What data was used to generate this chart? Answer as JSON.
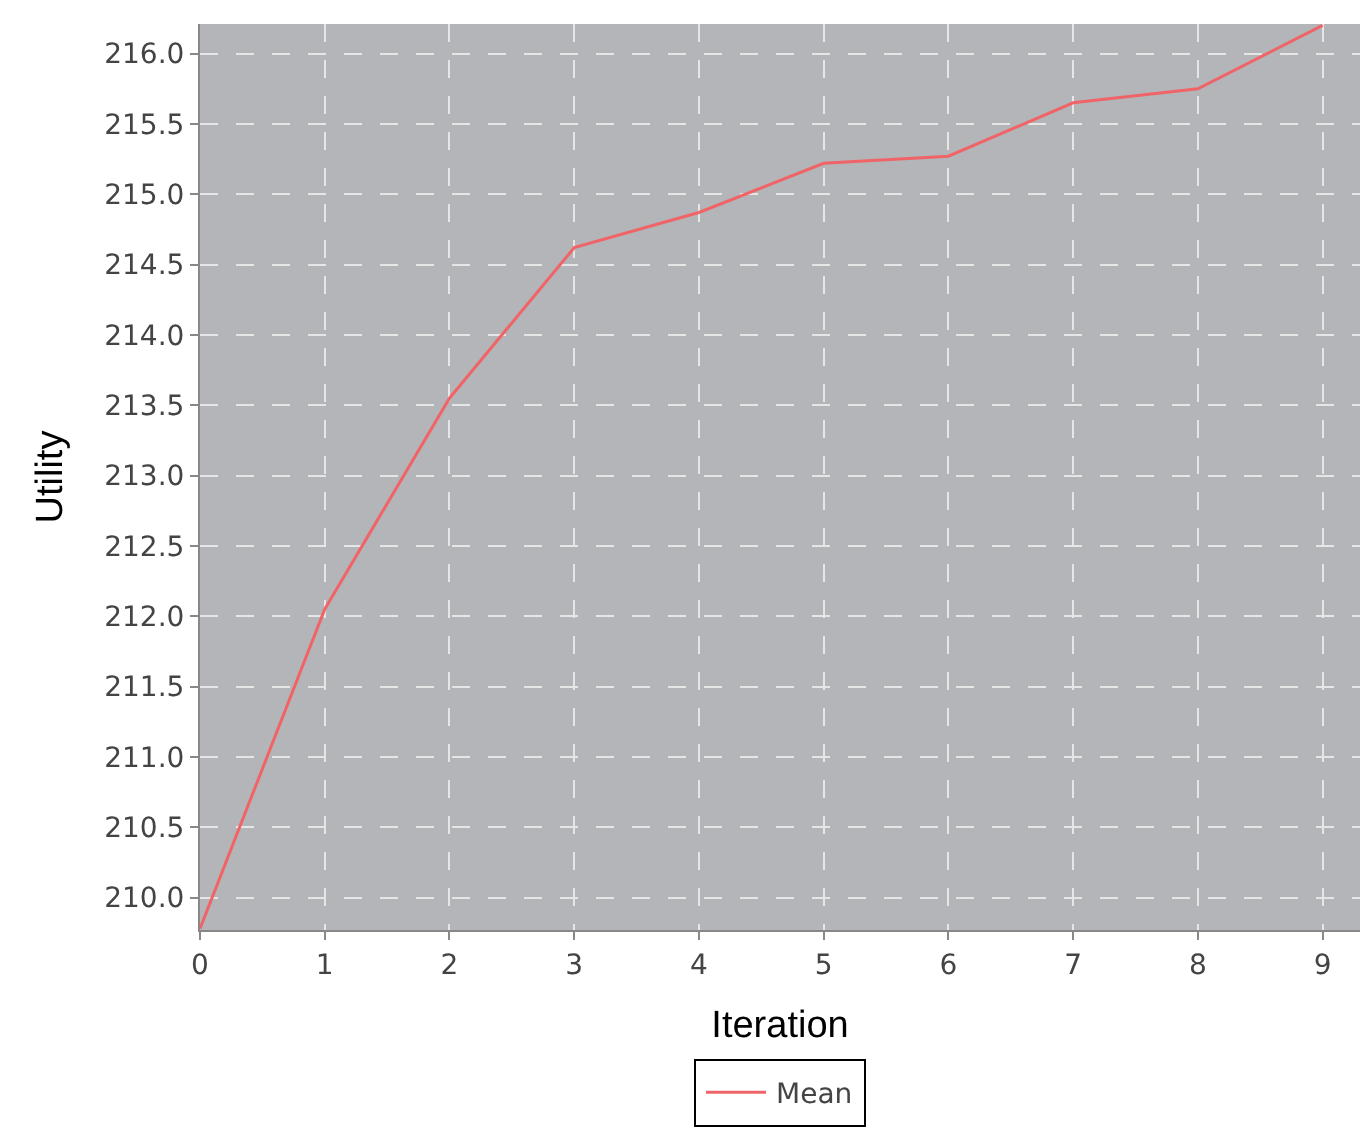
{
  "chart_data": {
    "type": "line",
    "xlabel": "Iteration",
    "ylabel": "Utility",
    "x": [
      0,
      1,
      2,
      3,
      4,
      5,
      6,
      7,
      8,
      9
    ],
    "series": [
      {
        "name": "Mean",
        "color": "#f06468",
        "values": [
          209.78,
          212.05,
          213.55,
          214.62,
          214.87,
          215.22,
          215.27,
          215.65,
          215.75,
          216.2
        ]
      }
    ],
    "xlim": [
      0,
      9.3
    ],
    "xticks": [
      0,
      1,
      2,
      3,
      4,
      5,
      6,
      7,
      8,
      9
    ],
    "ylim": [
      209.77,
      216.21
    ],
    "yticks": [
      {
        "value": 210,
        "label": "210.0"
      },
      {
        "value": 210.5,
        "label": "210.5"
      },
      {
        "value": 211,
        "label": "211.0"
      },
      {
        "value": 211.5,
        "label": "211.5"
      },
      {
        "value": 212,
        "label": "212.0"
      },
      {
        "value": 212.5,
        "label": "212.5"
      },
      {
        "value": 213,
        "label": "213.0"
      },
      {
        "value": 213.5,
        "label": "213.5"
      },
      {
        "value": 214,
        "label": "214.0"
      },
      {
        "value": 214.5,
        "label": "214.5"
      },
      {
        "value": 215,
        "label": "215.0"
      },
      {
        "value": 215.5,
        "label": "215.5"
      },
      {
        "value": 216,
        "label": "216.0"
      }
    ],
    "grid": true,
    "legend": "bottom",
    "marker": "none",
    "line_style": "solid"
  }
}
